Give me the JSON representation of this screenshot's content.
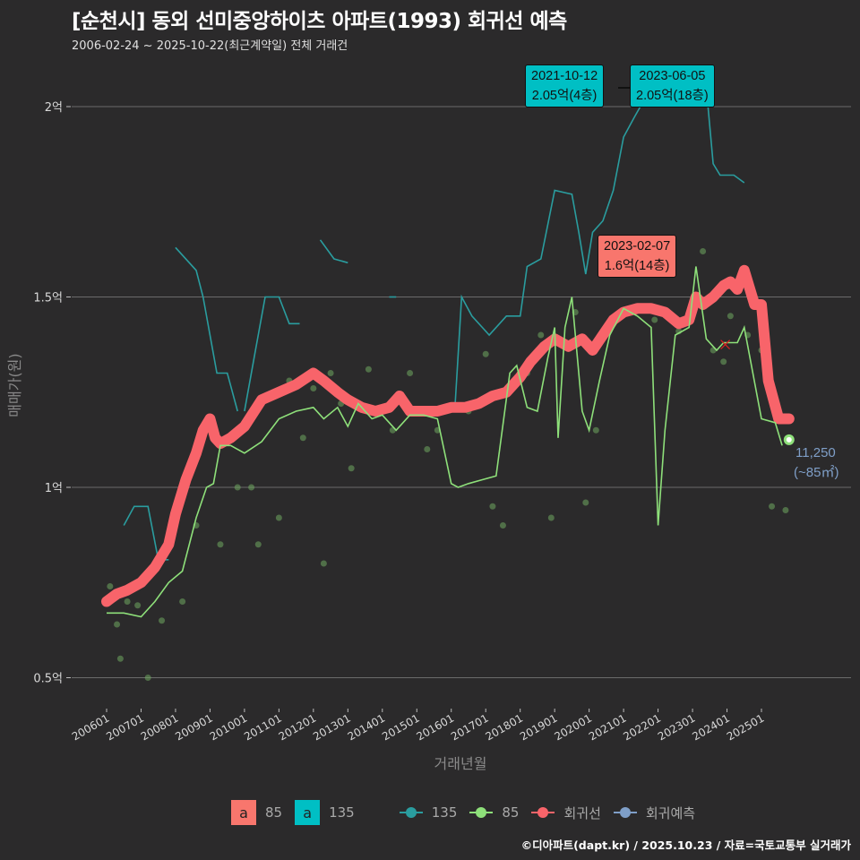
{
  "header": {
    "title": "[순천시] 동외 선미중앙하이츠 아파트(1993) 회귀선 예측",
    "subtitle": "2006-02-24 ~ 2025-10-22(최근계약일) 전체 거래건"
  },
  "annotations": {
    "max135_a": {
      "date": "2021-10-12",
      "value": "2.05억(4층)"
    },
    "max135_b": {
      "date": "2023-06-05",
      "value": "2.05억(18층)"
    },
    "max85": {
      "date": "2023-02-07",
      "value": "1.6억(14층)"
    },
    "end_value": "11,250",
    "end_area": "(~85㎡)"
  },
  "legend": {
    "fill_85": "85",
    "fill_135": "135",
    "box_glyph": "a",
    "line_135": "135",
    "line_85": "85",
    "regression": "회귀선",
    "forecast": "회귀예측"
  },
  "credit": "©디아파트(dapt.kr) / 2025.10.23 / 자료=국토교통부 실거래가",
  "colors": {
    "background": "#2b2a2b",
    "series_135": "#2a9d9f",
    "series_85": "#8ee07a",
    "regression": "#f8646a",
    "forecast": "#7f9fc8",
    "label_teal": "#00bfc4",
    "label_red": "#f8766d",
    "grid": "#6b6b6b"
  },
  "chart_data": {
    "type": "line",
    "title": "[순천시] 동외 선미중앙하이츠 아파트(1993) 회귀선 예측",
    "subtitle": "2006-02-24 ~ 2025-10-22(최근계약일) 전체 거래건",
    "xlabel": "거래년월",
    "ylabel": "매매가(원)",
    "x_ticks": [
      "200601",
      "200701",
      "200801",
      "200901",
      "201001",
      "201101",
      "201201",
      "201301",
      "201401",
      "201501",
      "201601",
      "201701",
      "201801",
      "201901",
      "202001",
      "202101",
      "202201",
      "202301",
      "202401",
      "202501"
    ],
    "y_ticks": [
      "0.5억",
      "1억",
      "1.5억",
      "2억"
    ],
    "y_tick_values": [
      5000,
      10000,
      15000,
      20000
    ],
    "ylim": [
      4200,
      21000
    ],
    "unit": "만원",
    "grid": true,
    "legend_position": "bottom",
    "series": [
      {
        "name": "회귀선",
        "color": "#f8646a",
        "x": [
          2006.0,
          2006.3,
          2006.6,
          2007.0,
          2007.4,
          2007.8,
          2008.0,
          2008.3,
          2008.6,
          2008.8,
          2009.0,
          2009.15,
          2009.3,
          2009.6,
          2010.0,
          2010.5,
          2011.0,
          2011.5,
          2012.0,
          2012.3,
          2012.7,
          2013.0,
          2013.4,
          2013.8,
          2014.2,
          2014.5,
          2014.8,
          2015.2,
          2015.6,
          2016.0,
          2016.4,
          2016.8,
          2017.2,
          2017.6,
          2018.0,
          2018.3,
          2018.7,
          2019.0,
          2019.4,
          2019.8,
          2020.1,
          2020.4,
          2020.7,
          2021.0,
          2021.4,
          2021.8,
          2022.2,
          2022.6,
          2022.9,
          2023.1,
          2023.3,
          2023.6,
          2023.9,
          2024.1,
          2024.3,
          2024.5,
          2024.8,
          2025.0,
          2025.2,
          2025.5,
          2025.8
        ],
        "values": [
          7000,
          7200,
          7300,
          7500,
          7900,
          8500,
          9300,
          10200,
          10900,
          11500,
          11800,
          11300,
          11150,
          11300,
          11600,
          12300,
          12500,
          12700,
          13000,
          12800,
          12500,
          12300,
          12100,
          12000,
          12100,
          12400,
          12000,
          12000,
          12000,
          12100,
          12100,
          12200,
          12400,
          12500,
          12900,
          13300,
          13700,
          13900,
          13700,
          13900,
          13600,
          14000,
          14400,
          14600,
          14700,
          14700,
          14600,
          14300,
          14400,
          15000,
          14800,
          15000,
          15300,
          15400,
          15200,
          15700,
          14800,
          14800,
          12800,
          11800,
          11800
        ]
      },
      {
        "name": "85",
        "color": "#8ee07a",
        "x": [
          2006.0,
          2006.5,
          2007.0,
          2007.4,
          2007.8,
          2008.2,
          2008.6,
          2008.9,
          2009.1,
          2009.3,
          2009.6,
          2010.0,
          2010.5,
          2011.0,
          2011.5,
          2012.0,
          2012.3,
          2012.7,
          2013.0,
          2013.3,
          2013.7,
          2014.0,
          2014.4,
          2014.8,
          2015.2,
          2015.6,
          2016.0,
          2016.2,
          2016.5,
          2016.9,
          2017.3,
          2017.7,
          2017.9,
          2018.2,
          2018.5,
          2018.8,
          2019.0,
          2019.1,
          2019.3,
          2019.5,
          2019.8,
          2020.0,
          2020.3,
          2020.6,
          2021.0,
          2021.4,
          2021.8,
          2022.0,
          2022.2,
          2022.5,
          2022.9,
          2023.1,
          2023.4,
          2023.7,
          2023.9,
          2024.1,
          2024.3,
          2024.5,
          2025.0,
          2025.4,
          2025.6
        ],
        "values": [
          6700,
          6700,
          6600,
          7000,
          7500,
          7800,
          9200,
          10000,
          10100,
          11100,
          11100,
          10900,
          11200,
          11800,
          12000,
          12100,
          11800,
          12100,
          11600,
          12200,
          11800,
          11900,
          11500,
          11900,
          11900,
          11800,
          10100,
          10000,
          10100,
          10200,
          10300,
          13000,
          13200,
          12100,
          12000,
          13400,
          14200,
          11300,
          14200,
          15000,
          12000,
          11500,
          12800,
          14000,
          14700,
          14500,
          14200,
          9000,
          11500,
          14000,
          14200,
          15800,
          13900,
          13600,
          13800,
          13800,
          13800,
          14200,
          11800,
          11700,
          11100
        ]
      },
      {
        "name": "135",
        "color": "#2a9d9f",
        "x": [
          2006.5,
          2006.8,
          2007.2,
          2007.5,
          2007.8,
          2008.0,
          2008.6,
          2008.8,
          2009.0,
          2009.2,
          2009.5,
          2009.8,
          2010.0,
          2010.3,
          2010.6,
          2011.0,
          2011.3,
          2011.6,
          2012.2,
          2012.6,
          2013.0,
          2014.2,
          2014.4,
          2016.1,
          2016.3,
          2016.6,
          2016.9,
          2017.1,
          2017.6,
          2018.0,
          2018.2,
          2018.6,
          2019.0,
          2019.5,
          2019.7,
          2019.9,
          2020.1,
          2020.4,
          2020.7,
          2021.0,
          2021.3,
          2021.8,
          2023.4,
          2023.6,
          2023.8,
          2024.2,
          2024.5
        ],
        "values": [
          9000,
          9500,
          9500,
          8100,
          8100,
          16300,
          15700,
          15000,
          14000,
          13000,
          13000,
          12000,
          12000,
          13500,
          15000,
          15000,
          14300,
          14300,
          16500,
          16000,
          15900,
          15000,
          15000,
          12000,
          15000,
          14500,
          14200,
          14000,
          14500,
          14500,
          15800,
          16000,
          17800,
          17700,
          16700,
          15600,
          16700,
          17000,
          17800,
          19200,
          19700,
          20500,
          20500,
          18500,
          18200,
          18200,
          18000
        ]
      },
      {
        "name": "회귀예측",
        "color": "#7f9fc8",
        "x": [
          2025.8
        ],
        "values": [
          11250
        ],
        "label": "11,250 (~85㎡)"
      }
    ],
    "annotations": [
      {
        "series": "135",
        "date": "2021-10-12",
        "text": "2.05억(4층)"
      },
      {
        "series": "135",
        "date": "2023-06-05",
        "text": "2.05억(18층)"
      },
      {
        "series": "85",
        "date": "2023-02-07",
        "text": "1.6억(14층)"
      }
    ],
    "scatter_points_85": [
      [
        2006.1,
        7400
      ],
      [
        2006.3,
        6400
      ],
      [
        2006.4,
        5500
      ],
      [
        2006.6,
        7000
      ],
      [
        2006.9,
        6900
      ],
      [
        2007.2,
        5000
      ],
      [
        2007.6,
        6500
      ],
      [
        2008.2,
        7000
      ],
      [
        2008.6,
        9000
      ],
      [
        2009.3,
        8500
      ],
      [
        2009.5,
        11300
      ],
      [
        2009.8,
        10000
      ],
      [
        2010.2,
        10000
      ],
      [
        2010.4,
        8500
      ],
      [
        2011.0,
        9200
      ],
      [
        2011.3,
        12800
      ],
      [
        2011.7,
        11300
      ],
      [
        2012.0,
        12600
      ],
      [
        2012.3,
        8000
      ],
      [
        2012.5,
        13000
      ],
      [
        2012.8,
        12200
      ],
      [
        2013.1,
        10500
      ],
      [
        2013.6,
        13100
      ],
      [
        2014.3,
        11500
      ],
      [
        2014.8,
        13000
      ],
      [
        2015.3,
        11000
      ],
      [
        2015.6,
        11500
      ],
      [
        2016.5,
        12000
      ],
      [
        2017.0,
        13500
      ],
      [
        2017.2,
        9500
      ],
      [
        2017.5,
        9000
      ],
      [
        2018.2,
        13000
      ],
      [
        2018.6,
        14000
      ],
      [
        2018.9,
        9200
      ],
      [
        2019.6,
        14600
      ],
      [
        2019.9,
        9600
      ],
      [
        2020.2,
        11500
      ],
      [
        2021.9,
        14400
      ],
      [
        2022.6,
        14100
      ],
      [
        2022.9,
        14400
      ],
      [
        2023.3,
        16200
      ],
      [
        2023.6,
        13600
      ],
      [
        2023.9,
        13300
      ],
      [
        2024.1,
        14500
      ],
      [
        2024.6,
        14000
      ],
      [
        2025.0,
        13600
      ],
      [
        2025.3,
        9500
      ],
      [
        2025.7,
        9400
      ]
    ]
  }
}
